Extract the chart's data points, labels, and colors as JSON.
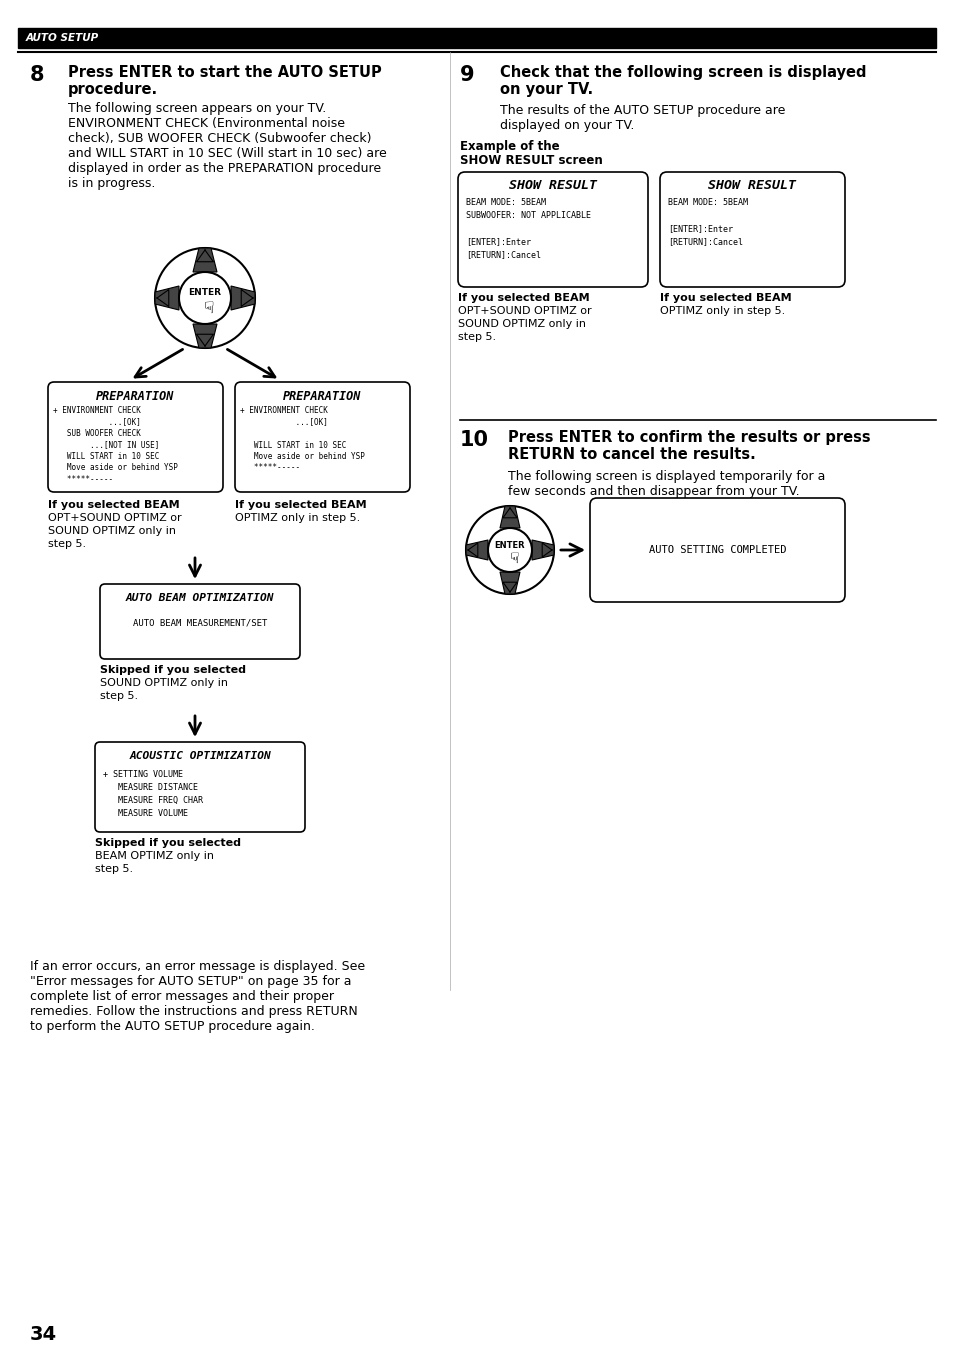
{
  "bg_color": "#ffffff",
  "header_bg": "#000000",
  "header_text": "AUTO SETUP",
  "page_number": "34",
  "section8_body_lines": [
    "The following screen appears on your TV.",
    "ENVIRONMENT CHECK (Environmental noise",
    "check), SUB WOOFER CHECK (Subwoofer check)",
    "and WILL START in 10 SEC (Will start in 10 sec) are",
    "displayed in order as the PREPARATION procedure",
    "is in progress."
  ],
  "prep_box1_title": "PREPARATION",
  "prep_box1_lines": [
    "+ ENVIRONMENT CHECK",
    "            ...[OK]",
    "   SUB WOOFER CHECK",
    "        ...[NOT IN USE]",
    "   WILL START in 10 SEC",
    "   Move aside or behind YSP",
    "   *****-----"
  ],
  "prep_box2_title": "PREPARATION",
  "prep_box2_lines": [
    "+ ENVIRONMENT CHECK",
    "            ...[OK]",
    "",
    "   WILL START in 10 SEC",
    "   Move aside or behind YSP",
    "   *****-----"
  ],
  "prep_box1_caption_lines": [
    "If you selected BEAM",
    "OPT+SOUND OPTIMZ or",
    "SOUND OPTIMZ only in",
    "step 5."
  ],
  "prep_box2_caption_lines": [
    "If you selected BEAM",
    "OPTIMZ only in step 5."
  ],
  "auto_beam_title": "AUTO BEAM OPTIMIZATION",
  "auto_beam_line": "AUTO BEAM MEASUREMENT/SET",
  "auto_beam_caption_lines": [
    "Skipped if you selected",
    "SOUND OPTIMZ only in",
    "step 5."
  ],
  "acoustic_title": "ACOUSTIC OPTIMIZATION",
  "acoustic_lines": [
    "+ SETTING VOLUME",
    "   MEASURE DISTANCE",
    "   MEASURE FREQ CHAR",
    "   MEASURE VOLUME"
  ],
  "acoustic_caption_lines": [
    "Skipped if you selected",
    "BEAM OPTIMZ only in",
    "step 5."
  ],
  "show_result1_title": "SHOW RESULT",
  "show_result1_lines": [
    "BEAM MODE: 5BEAM",
    "SUBWOOFER: NOT APPLICABLE",
    "",
    "[ENTER]:Enter",
    "[RETURN]:Cancel"
  ],
  "show_result2_title": "SHOW RESULT",
  "show_result2_lines": [
    "BEAM MODE: 5BEAM",
    "",
    "[ENTER]:Enter",
    "[RETURN]:Cancel"
  ],
  "show_result1_caption_lines": [
    "If you selected BEAM",
    "OPT+SOUND OPTIMZ or",
    "SOUND OPTIMZ only in",
    "step 5."
  ],
  "show_result2_caption_lines": [
    "If you selected BEAM",
    "OPTIMZ only in step 5."
  ],
  "auto_complete_text": "AUTO SETTING COMPLETED",
  "section10_body_lines": [
    "The following screen is displayed temporarily for a",
    "few seconds and then disappear from your TV."
  ],
  "bottom_text_lines": [
    "If an error occurs, an error message is displayed. See",
    "\"Error messages for AUTO SETUP\" on page 35 for a",
    "complete list of error messages and their proper",
    "remedies. Follow the instructions and press RETURN",
    "to perform the AUTO SETUP procedure again."
  ]
}
